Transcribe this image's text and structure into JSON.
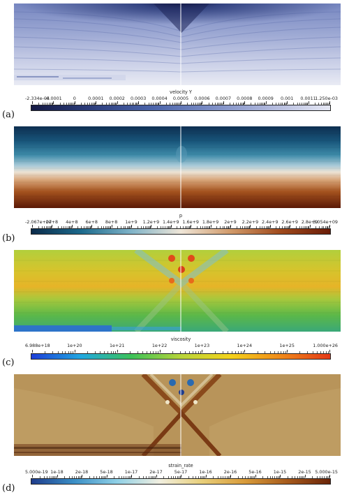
{
  "panels": [
    {
      "label": "(a)",
      "colorbar": {
        "title": "velocity Y",
        "ticks": [
          "-2.334e-04",
          "-0.0001",
          "0",
          "0.0001",
          "0.0002",
          "0.0003",
          "0.0004",
          "0.0005",
          "0.0006",
          "0.0007",
          "0.0008",
          "0.0009",
          "0.001",
          "0.0011",
          "1.250e-03"
        ],
        "colors": [
          "#151a44",
          "#2c3e7c",
          "#4a63a8",
          "#7a8cc4",
          "#b0b8dc",
          "#e6e8f4"
        ]
      }
    },
    {
      "label": "(b)",
      "colorbar": {
        "title": "p",
        "ticks": [
          "-2.067e+07",
          "2e+8",
          "4e+8",
          "6e+8",
          "8e+8",
          "1e+9",
          "1.2e+9",
          "1.4e+9",
          "1.6e+9",
          "1.8e+9",
          "2e+9",
          "2.2e+9",
          "2.4e+9",
          "2.6e+9",
          "2.8e+9",
          "3.054e+09"
        ],
        "colors": [
          "#0b2b4a",
          "#1c6a8c",
          "#7fb3c8",
          "#efe6d8",
          "#d19a6a",
          "#a04a1c",
          "#6a1c08"
        ]
      }
    },
    {
      "label": "(c)",
      "colorbar": {
        "title": "viscosity",
        "ticks": [
          "6.988e+18",
          "1e+20",
          "1e+21",
          "1e+22",
          "1e+23",
          "1e+24",
          "1e+25",
          "1.000e+26"
        ],
        "colors": [
          "#1d3ed8",
          "#21a8e0",
          "#3cc25a",
          "#b8d43a",
          "#f4d21c",
          "#f08a1a",
          "#e43a18"
        ]
      }
    },
    {
      "label": "(d)",
      "colorbar": {
        "title": "strain_rate",
        "ticks": [
          "5.000e-19",
          "1e-18",
          "2e-18",
          "5e-18",
          "1e-17",
          "2e-17",
          "5e-17",
          "1e-16",
          "2e-16",
          "5e-16",
          "1e-15",
          "2e-15",
          "5.000e-15"
        ],
        "colors": [
          "#1f3d8c",
          "#3b8fc6",
          "#8fd0e6",
          "#f1efe0",
          "#e8cf7a",
          "#d89b3a",
          "#a65a1c",
          "#6a2408"
        ]
      }
    }
  ]
}
